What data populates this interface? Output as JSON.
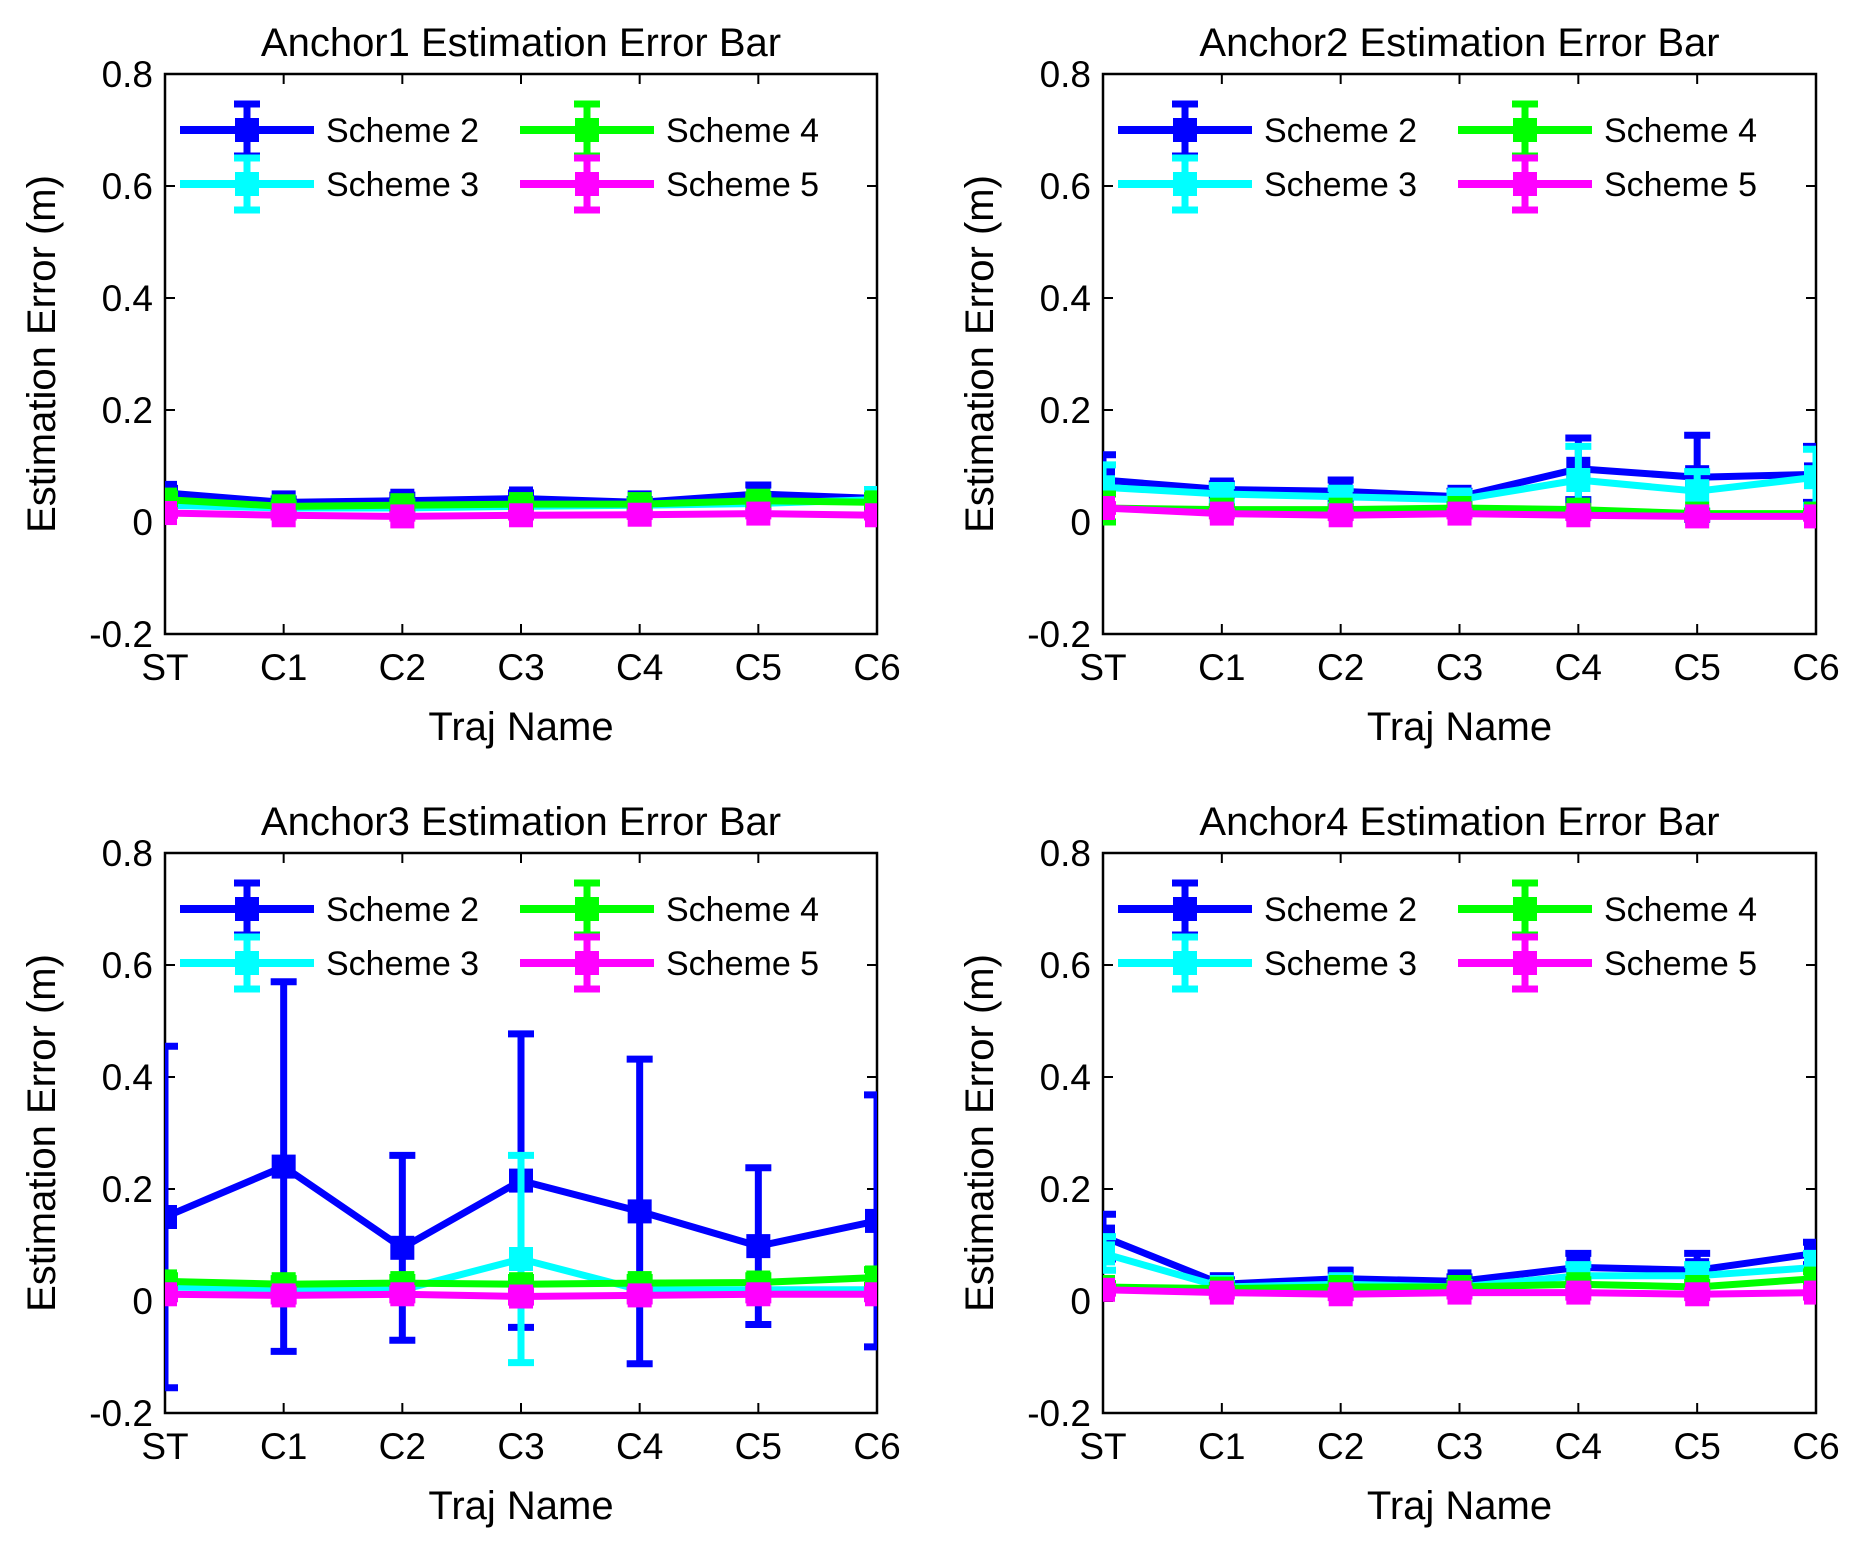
{
  "figure": {
    "colors": {
      "Scheme 2": "#0000ff",
      "Scheme 3": "#00ffff",
      "Scheme 4": "#00ff00",
      "Scheme 5": "#ff00ff"
    }
  },
  "chart_data": [
    {
      "type": "line",
      "title": "Anchor1 Estimation Error Bar",
      "xlabel": "Traj Name",
      "ylabel": "Estimation Error (m)",
      "categories": [
        "ST",
        "C1",
        "C2",
        "C3",
        "C4",
        "C5",
        "C6"
      ],
      "ylim": [
        -0.2,
        0.8
      ],
      "yticks": [
        -0.2,
        0,
        0.2,
        0.4,
        0.6,
        0.8
      ],
      "ytick_labels": [
        "-0.2",
        "0",
        "0.2",
        "0.4",
        "0.6",
        "0.8"
      ],
      "legend": "top, two columns",
      "series": [
        {
          "name": "Scheme 2",
          "values": [
            0.052,
            0.035,
            0.038,
            0.042,
            0.035,
            0.05,
            0.042
          ],
          "err": [
            0.008,
            0.006,
            0.01,
            0.01,
            0.005,
            0.016,
            0.006
          ]
        },
        {
          "name": "Scheme 3",
          "values": [
            0.03,
            0.025,
            0.025,
            0.028,
            0.03,
            0.033,
            0.04
          ],
          "err": [
            0.005,
            0.004,
            0.004,
            0.005,
            0.006,
            0.006,
            0.018
          ]
        },
        {
          "name": "Scheme 4",
          "values": [
            0.04,
            0.028,
            0.03,
            0.032,
            0.032,
            0.038,
            0.035
          ],
          "err": [
            0.01,
            0.006,
            0.006,
            0.008,
            0.006,
            0.01,
            0.012
          ]
        },
        {
          "name": "Scheme 5",
          "values": [
            0.016,
            0.012,
            0.01,
            0.012,
            0.013,
            0.015,
            0.012
          ],
          "err": [
            0.004,
            0.003,
            0.003,
            0.003,
            0.003,
            0.004,
            0.003
          ]
        }
      ]
    },
    {
      "type": "line",
      "title": "Anchor2 Estimation Error Bar",
      "xlabel": "Traj Name",
      "ylabel": "Estimation Error (m)",
      "categories": [
        "ST",
        "C1",
        "C2",
        "C3",
        "C4",
        "C5",
        "C6"
      ],
      "ylim": [
        -0.2,
        0.8
      ],
      "yticks": [
        -0.2,
        0,
        0.2,
        0.4,
        0.6,
        0.8
      ],
      "ytick_labels": [
        "-0.2",
        "0",
        "0.2",
        "0.4",
        "0.6",
        "0.8"
      ],
      "legend": "top, two columns",
      "series": [
        {
          "name": "Scheme 2",
          "values": [
            0.075,
            0.058,
            0.055,
            0.045,
            0.095,
            0.08,
            0.085
          ],
          "err": [
            0.045,
            0.01,
            0.02,
            0.01,
            0.055,
            0.075,
            0.05
          ]
        },
        {
          "name": "Scheme 3",
          "values": [
            0.062,
            0.05,
            0.045,
            0.04,
            0.075,
            0.055,
            0.08
          ],
          "err": [
            0.04,
            0.015,
            0.015,
            0.012,
            0.06,
            0.035,
            0.05
          ]
        },
        {
          "name": "Scheme 4",
          "values": [
            0.025,
            0.022,
            0.022,
            0.025,
            0.022,
            0.015,
            0.015
          ],
          "err": [
            0.025,
            0.005,
            0.005,
            0.006,
            0.006,
            0.004,
            0.004
          ]
        },
        {
          "name": "Scheme 5",
          "values": [
            0.025,
            0.015,
            0.012,
            0.015,
            0.012,
            0.01,
            0.01
          ],
          "err": [
            0.006,
            0.004,
            0.004,
            0.004,
            0.004,
            0.004,
            0.003
          ]
        }
      ]
    },
    {
      "type": "line",
      "title": "Anchor3 Estimation Error Bar",
      "xlabel": "Traj Name",
      "ylabel": "Estimation Error (m)",
      "categories": [
        "ST",
        "C1",
        "C2",
        "C3",
        "C4",
        "C5",
        "C6"
      ],
      "ylim": [
        -0.2,
        0.8
      ],
      "yticks": [
        -0.2,
        0,
        0.2,
        0.4,
        0.6,
        0.8
      ],
      "ytick_labels": [
        "-0.2",
        "0",
        "0.2",
        "0.4",
        "0.6",
        "0.8"
      ],
      "legend": "top, two columns",
      "series": [
        {
          "name": "Scheme 2",
          "values": [
            0.15,
            0.24,
            0.095,
            0.215,
            0.16,
            0.098,
            0.143
          ],
          "err": [
            0.305,
            0.33,
            0.165,
            0.262,
            0.272,
            0.14,
            0.225
          ]
        },
        {
          "name": "Scheme 3",
          "values": [
            0.025,
            0.022,
            0.02,
            0.075,
            0.02,
            0.02,
            0.02
          ],
          "err": [
            0.01,
            0.008,
            0.01,
            0.185,
            0.008,
            0.008,
            0.008
          ]
        },
        {
          "name": "Scheme 4",
          "values": [
            0.035,
            0.03,
            0.032,
            0.03,
            0.032,
            0.033,
            0.042
          ],
          "err": [
            0.01,
            0.01,
            0.01,
            0.012,
            0.01,
            0.012,
            0.014
          ]
        },
        {
          "name": "Scheme 5",
          "values": [
            0.012,
            0.01,
            0.012,
            0.008,
            0.01,
            0.012,
            0.012
          ],
          "err": [
            0.008,
            0.01,
            0.01,
            0.01,
            0.01,
            0.01,
            0.008
          ]
        }
      ]
    },
    {
      "type": "line",
      "title": "Anchor4 Estimation Error Bar",
      "xlabel": "Traj Name",
      "ylabel": "Estimation Error (m)",
      "categories": [
        "ST",
        "C1",
        "C2",
        "C3",
        "C4",
        "C5",
        "C6"
      ],
      "ylim": [
        -0.2,
        0.8
      ],
      "yticks": [
        -0.2,
        0,
        0.2,
        0.4,
        0.6,
        0.8
      ],
      "ytick_labels": [
        "-0.2",
        "0",
        "0.2",
        "0.4",
        "0.6",
        "0.8"
      ],
      "legend": "top, two columns",
      "series": [
        {
          "name": "Scheme 2",
          "values": [
            0.115,
            0.03,
            0.04,
            0.035,
            0.06,
            0.055,
            0.085
          ],
          "err": [
            0.04,
            0.008,
            0.015,
            0.008,
            0.025,
            0.03,
            0.02
          ]
        },
        {
          "name": "Scheme 3",
          "values": [
            0.085,
            0.025,
            0.03,
            0.025,
            0.045,
            0.045,
            0.06
          ],
          "err": [
            0.03,
            0.008,
            0.012,
            0.008,
            0.02,
            0.02,
            0.025
          ]
        },
        {
          "name": "Scheme 4",
          "values": [
            0.025,
            0.022,
            0.025,
            0.025,
            0.03,
            0.025,
            0.04
          ],
          "err": [
            0.006,
            0.006,
            0.006,
            0.006,
            0.008,
            0.008,
            0.012
          ]
        },
        {
          "name": "Scheme 5",
          "values": [
            0.02,
            0.015,
            0.012,
            0.015,
            0.015,
            0.012,
            0.015
          ],
          "err": [
            0.006,
            0.006,
            0.006,
            0.006,
            0.008,
            0.006,
            0.008
          ]
        }
      ]
    }
  ]
}
